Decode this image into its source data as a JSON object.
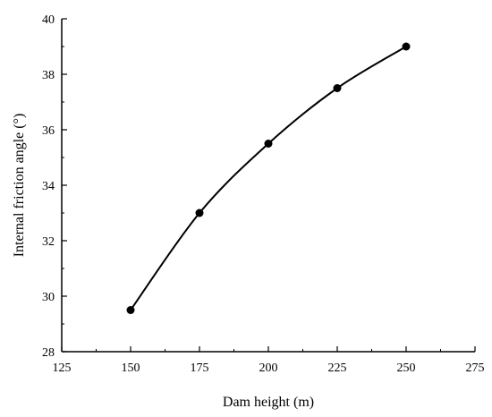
{
  "chart_data": {
    "type": "line",
    "title": "",
    "xlabel": "Dam height (m)",
    "ylabel": "Internal friction angle (°)",
    "xlim": [
      125,
      275
    ],
    "ylim": [
      28,
      40
    ],
    "xticks": [
      125,
      150,
      175,
      200,
      225,
      250,
      275
    ],
    "yticks": [
      28,
      30,
      32,
      34,
      36,
      38,
      40
    ],
    "x": [
      150,
      175,
      200,
      225,
      250
    ],
    "series": [
      {
        "values": [
          29.5,
          33.0,
          35.5,
          37.5,
          39.0
        ]
      }
    ],
    "grid": false,
    "line_color": "#000000",
    "marker": "circle",
    "smooth": true
  }
}
